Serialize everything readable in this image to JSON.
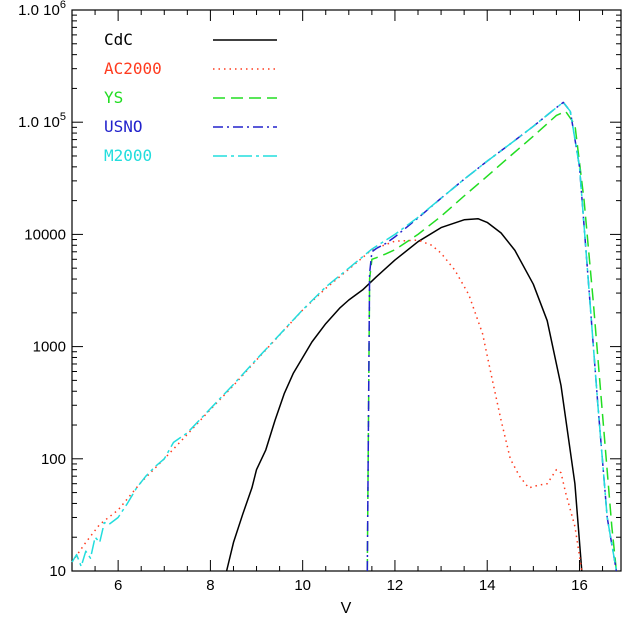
{
  "chart_data": {
    "type": "line",
    "title": "",
    "xlabel": "V",
    "ylabel": "",
    "xlim": [
      5,
      16.9
    ],
    "ylim": [
      10,
      1000000
    ],
    "yscale": "log",
    "grid": false,
    "legend_position": "top-left",
    "x_ticks": [
      6,
      8,
      10,
      12,
      14,
      16
    ],
    "x_tick_labels": [
      "6",
      "8",
      "10",
      "12",
      "14",
      "16"
    ],
    "y_ticks": [
      10,
      100,
      1000,
      10000,
      100000,
      1000000
    ],
    "y_tick_labels": [
      "10",
      "100",
      "1000",
      "10000",
      "1.0 10^5",
      "1.0 10^6"
    ],
    "series": [
      {
        "name": "CdC",
        "color": "#000000",
        "dash": "solid",
        "x": [
          8.35,
          8.5,
          8.7,
          8.9,
          9.0,
          9.2,
          9.4,
          9.6,
          9.8,
          10.0,
          10.2,
          10.5,
          10.8,
          11.0,
          11.3,
          11.6,
          12.0,
          12.5,
          13.0,
          13.5,
          13.8,
          14.0,
          14.3,
          14.6,
          15.0,
          15.3,
          15.6,
          15.9,
          16.05
        ],
        "y": [
          10,
          18,
          32,
          55,
          80,
          120,
          220,
          380,
          580,
          800,
          1100,
          1600,
          2200,
          2600,
          3200,
          4200,
          5900,
          8600,
          11500,
          13500,
          13800,
          12800,
          10300,
          7200,
          3600,
          1700,
          450,
          60,
          10
        ]
      },
      {
        "name": "AC2000",
        "color": "#ff3b1f",
        "dash": "dotted",
        "x": [
          5.0,
          5.3,
          5.6,
          6.0,
          6.5,
          7.0,
          7.5,
          8.0,
          8.5,
          9.0,
          9.5,
          10.0,
          10.5,
          11.0,
          11.5,
          12.0,
          12.5,
          12.8,
          13.0,
          13.3,
          13.6,
          13.9,
          14.1,
          14.3,
          14.5,
          14.7,
          14.9,
          15.1,
          15.3,
          15.5,
          15.6,
          15.7,
          15.9,
          16.05
        ],
        "y": [
          12,
          18,
          26,
          35,
          62,
          100,
          165,
          275,
          450,
          760,
          1270,
          2120,
          3300,
          4900,
          7300,
          8700,
          8900,
          8000,
          6800,
          4800,
          2900,
          1300,
          530,
          220,
          100,
          70,
          55,
          58,
          60,
          80,
          75,
          50,
          25,
          10
        ]
      },
      {
        "name": "YS",
        "color": "#22dd22",
        "dash": "dashed",
        "x": [
          11.4,
          11.45,
          11.5,
          11.6,
          11.8,
          12.0,
          12.5,
          13.0,
          13.5,
          14.0,
          14.5,
          15.0,
          15.5,
          15.7,
          15.9,
          16.1,
          16.3,
          16.5,
          16.7,
          16.8
        ],
        "y": [
          10,
          4000,
          6000,
          6200,
          6700,
          7300,
          10000,
          14500,
          22000,
          33000,
          50000,
          75000,
          115000,
          125000,
          95000,
          20000,
          2500,
          250,
          25,
          10
        ]
      },
      {
        "name": "USNO",
        "color": "#2222cc",
        "dash": "dashdot",
        "x": [
          11.4,
          11.45,
          11.5,
          11.6,
          11.8,
          12.0,
          12.5,
          13.0,
          13.5,
          14.0,
          14.5,
          15.0,
          15.5,
          15.65,
          15.8,
          16.0,
          16.2,
          16.4,
          16.6,
          16.8
        ],
        "y": [
          10,
          4500,
          7000,
          7500,
          8300,
          9500,
          14000,
          21000,
          31000,
          45000,
          64000,
          92000,
          135000,
          150000,
          125000,
          40000,
          3500,
          300,
          30,
          10
        ]
      },
      {
        "name": "M2000",
        "color": "#22dddd",
        "dash": "dashdotlong",
        "x": [
          5.0,
          5.1,
          5.2,
          5.3,
          5.4,
          5.5,
          5.6,
          5.7,
          5.8,
          6.0,
          6.2,
          6.4,
          6.6,
          6.8,
          7.0,
          7.2,
          7.5,
          8.0,
          8.5,
          9.0,
          9.5,
          10.0,
          10.5,
          11.0,
          11.5,
          12.0,
          12.5,
          13.0,
          13.5,
          14.0,
          14.5,
          15.0,
          15.5,
          15.65,
          15.8,
          16.0,
          16.2,
          16.4,
          16.6,
          16.8
        ],
        "y": [
          12,
          14,
          11,
          15,
          13,
          20,
          18,
          27,
          26,
          30,
          40,
          55,
          70,
          85,
          100,
          140,
          170,
          280,
          460,
          770,
          1280,
          2130,
          3400,
          5000,
          7400,
          10000,
          14200,
          21000,
          31000,
          45000,
          64000,
          92000,
          135000,
          150000,
          125000,
          40000,
          3500,
          300,
          30,
          10
        ]
      }
    ]
  }
}
